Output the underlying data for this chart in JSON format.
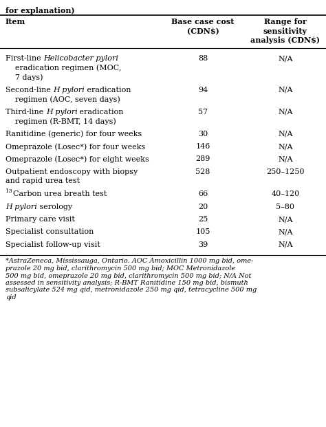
{
  "bg_color": "#ffffff",
  "text_color": "#000000",
  "font_size": 8.0,
  "footnote_font_size": 7.0,
  "font_family": "DejaVu Serif",
  "title_text": "for explanation)",
  "col2_header": "Base case cost\n(CDN$)",
  "col3_header": "Range for\nsensitivity\nanalysis (CDN$)",
  "col1_header": "Item",
  "rows": [
    {
      "lines": [
        [
          {
            "t": "First-line ",
            "i": false
          },
          {
            "t": "Helicobacter pylori",
            "i": true
          }
        ],
        [
          {
            "t": "    eradication regimen (MOC,",
            "i": false
          }
        ],
        [
          {
            "t": "    7 days)",
            "i": false
          }
        ]
      ],
      "cost": "88",
      "range": "N/A"
    },
    {
      "lines": [
        [
          {
            "t": "Second-line ",
            "i": false
          },
          {
            "t": "H pylori",
            "i": true
          },
          {
            "t": " eradication",
            "i": false
          }
        ],
        [
          {
            "t": "    regimen (AOC, seven days)",
            "i": false
          }
        ]
      ],
      "cost": "94",
      "range": "N/A"
    },
    {
      "lines": [
        [
          {
            "t": "Third-line ",
            "i": false
          },
          {
            "t": "H pylori",
            "i": true
          },
          {
            "t": " eradication",
            "i": false
          }
        ],
        [
          {
            "t": "    regimen (R-BMT, 14 days)",
            "i": false
          }
        ]
      ],
      "cost": "57",
      "range": "N/A"
    },
    {
      "lines": [
        [
          {
            "t": "Ranitidine (generic) for four weeks",
            "i": false
          }
        ]
      ],
      "cost": "30",
      "range": "N/A"
    },
    {
      "lines": [
        [
          {
            "t": "Omeprazole (Losec*) for four weeks",
            "i": false
          }
        ]
      ],
      "cost": "146",
      "range": "N/A"
    },
    {
      "lines": [
        [
          {
            "t": "Omeprazole (Losec*) for eight weeks",
            "i": false
          }
        ]
      ],
      "cost": "289",
      "range": "N/A"
    },
    {
      "lines": [
        [
          {
            "t": "Outpatient endoscopy with biopsy",
            "i": false
          }
        ],
        [
          {
            "t": "and rapid urea test",
            "i": false
          }
        ]
      ],
      "cost": "528",
      "range": "250–1250"
    },
    {
      "lines": [
        [
          {
            "t": "13",
            "i": false,
            "sup": true
          },
          {
            "t": "Carbon urea breath test",
            "i": false
          }
        ]
      ],
      "cost": "66",
      "range": "40–120"
    },
    {
      "lines": [
        [
          {
            "t": "H pylori",
            "i": true
          },
          {
            "t": " serology",
            "i": false
          }
        ]
      ],
      "cost": "20",
      "range": "5–80"
    },
    {
      "lines": [
        [
          {
            "t": "Primary care visit",
            "i": false
          }
        ]
      ],
      "cost": "25",
      "range": "N/A"
    },
    {
      "lines": [
        [
          {
            "t": "Specialist consultation",
            "i": false
          }
        ]
      ],
      "cost": "105",
      "range": "N/A"
    },
    {
      "lines": [
        [
          {
            "t": "Specialist follow-up visit",
            "i": false
          }
        ]
      ],
      "cost": "39",
      "range": "N/A"
    }
  ],
  "footnote_lines": [
    "*AstraZeneca, Mississauga, Ontario. AOC Amoxicillin 1000 mg bid, ome-",
    "prazole 20 mg bid, clarithromycin 500 mg bid; MOC Metronidazole",
    "500 mg bid, omeprazole 20 mg bid, clarithromycin 500 mg bid; N/A Not",
    "assessed in sensitivity analysis; R-BMT Ranitidine 150 mg bid, bismuth",
    "subsalicylate 524 mg qid, metronidazole 250 mg qid, tetracycline 500 mg",
    "qid"
  ]
}
